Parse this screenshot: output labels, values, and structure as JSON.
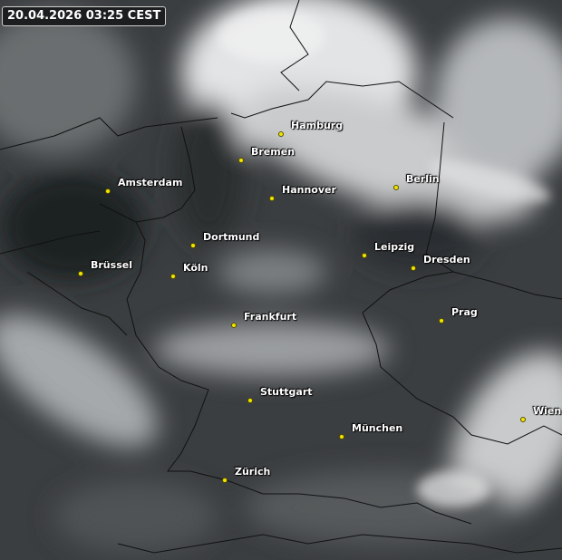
{
  "timestamp": "20.04.2026 03:25 CEST",
  "colors": {
    "city_marker": "#f2e600",
    "border_lines": "#111111",
    "label_text": "#ffffff"
  },
  "cities": [
    "Hamburg",
    "Bremen",
    "Amsterdam",
    "Hannover",
    "Berlin",
    "Dortmund",
    "Leipzig",
    "Dresden",
    "Brüssel",
    "Köln",
    "Prag",
    "Frankfurt",
    "Stuttgart",
    "Wien",
    "München",
    "Zürich"
  ]
}
